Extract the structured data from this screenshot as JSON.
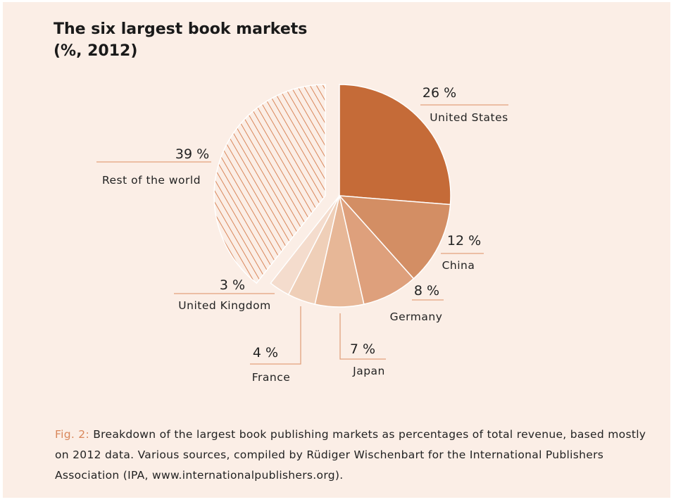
{
  "chart_data": {
    "type": "pie",
    "title": "The six largest book markets",
    "subtitle": "(%, 2012)",
    "slices": [
      {
        "label": "United States",
        "value": 26,
        "value_label": "26 %",
        "color": "#c56b38",
        "pattern": "solid"
      },
      {
        "label": "China",
        "value": 12,
        "value_label": "12 %",
        "color": "#d38e64",
        "pattern": "solid"
      },
      {
        "label": "Germany",
        "value": 8,
        "value_label": "8 %",
        "color": "#dea07c",
        "pattern": "solid"
      },
      {
        "label": "Japan",
        "value": 7,
        "value_label": "7 %",
        "color": "#e7b797",
        "pattern": "solid"
      },
      {
        "label": "France",
        "value": 4,
        "value_label": "4 %",
        "color": "#efcfb8",
        "pattern": "solid"
      },
      {
        "label": "United Kingdom",
        "value": 3,
        "value_label": "3 %",
        "color": "#f4dccd",
        "pattern": "solid"
      },
      {
        "label": "Rest of the world",
        "value": 39,
        "value_label": "39 %",
        "color": "#d9875b",
        "pattern": "hatched"
      }
    ],
    "leader_line_color": "#e2a27e"
  },
  "caption": {
    "fig_label": "Fig. 2:",
    "text": " Breakdown of the largest book publishing markets as percentages of total revenue, based mostly on 2012 data. Various sources, compiled by Rüdiger Wischenbart for the International Publishers Association (IPA, www.internationalpublishers.org)."
  }
}
